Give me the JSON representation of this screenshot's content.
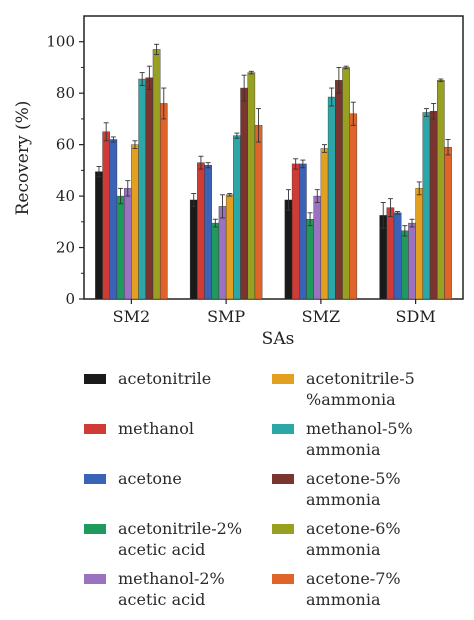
{
  "chart_data": {
    "type": "bar",
    "xlabel": "SAs",
    "ylabel": "Recovery (%)",
    "ylim": [
      0,
      110
    ],
    "yticks": [
      0,
      20,
      40,
      60,
      80,
      100
    ],
    "grid": false,
    "legend_placement": "bottom",
    "categories": [
      "SM2",
      "SMP",
      "SMZ",
      "SDM"
    ],
    "series": [
      {
        "name": "acetonitrile",
        "color": "#1a1a1a",
        "values": [
          49.5,
          38.5,
          38.5,
          32.5
        ],
        "errors": [
          2.0,
          2.5,
          4.0,
          5.0
        ]
      },
      {
        "name": "methanol",
        "color": "#d13b35",
        "values": [
          65.0,
          53.0,
          52.5,
          35.5
        ],
        "errors": [
          3.5,
          2.5,
          2.0,
          3.5
        ]
      },
      {
        "name": "acetone",
        "color": "#3a63b8",
        "values": [
          62.0,
          52.0,
          52.5,
          33.5
        ],
        "errors": [
          1.0,
          1.0,
          1.5,
          0.5
        ]
      },
      {
        "name": "acetonitrile-2%\nacetic acid",
        "color": "#1f9a5c",
        "values": [
          40.0,
          29.5,
          31.0,
          26.5
        ],
        "errors": [
          3.0,
          1.5,
          2.5,
          2.0
        ]
      },
      {
        "name": "methanol-2%\nacetic acid",
        "color": "#9a72c0",
        "values": [
          43.0,
          36.0,
          40.0,
          29.5
        ],
        "errors": [
          3.0,
          4.5,
          2.5,
          1.5
        ]
      },
      {
        "name": "acetonitrile-5\n%ammonia",
        "color": "#e3a020",
        "values": [
          60.0,
          40.5,
          58.5,
          43.0
        ],
        "errors": [
          1.5,
          0.5,
          1.5,
          2.5
        ]
      },
      {
        "name": "methanol-5%\nammonia",
        "color": "#2aa7a6",
        "values": [
          85.5,
          63.5,
          78.5,
          72.5
        ],
        "errors": [
          2.5,
          1.0,
          3.5,
          1.5
        ]
      },
      {
        "name": "acetone-5%\nammonia",
        "color": "#7a3530",
        "values": [
          86.0,
          82.0,
          85.0,
          73.0
        ],
        "errors": [
          4.5,
          5.0,
          5.0,
          3.0
        ]
      },
      {
        "name": "acetone-6%\nammonia",
        "color": "#98a021",
        "values": [
          97.0,
          88.0,
          90.0,
          85.0
        ],
        "errors": [
          2.0,
          0.5,
          0.5,
          0.5
        ]
      },
      {
        "name": "acetone-7%\nammonia",
        "color": "#e0642a",
        "values": [
          76.0,
          67.5,
          72.0,
          59.0
        ],
        "errors": [
          6.0,
          6.5,
          4.5,
          3.0
        ]
      }
    ]
  }
}
